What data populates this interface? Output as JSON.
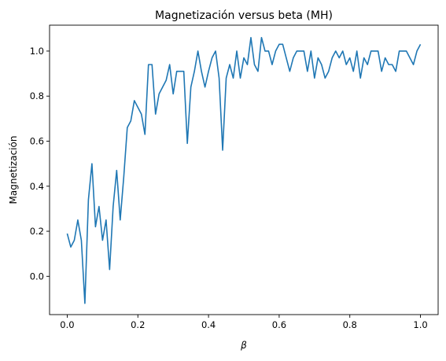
{
  "chart_data": {
    "type": "line",
    "title": "Magnetización versus beta (MH)",
    "xlabel": "β",
    "ylabel": "Magnetización",
    "xlim": [
      -0.05,
      1.05
    ],
    "ylim": [
      -0.17,
      1.115
    ],
    "xticks": [
      0.0,
      0.2,
      0.4,
      0.6,
      0.8,
      1.0
    ],
    "xtick_labels": [
      "0.0",
      "0.2",
      "0.4",
      "0.6",
      "0.8",
      "1.0"
    ],
    "yticks": [
      0.0,
      0.2,
      0.4,
      0.6,
      0.8,
      1.0
    ],
    "ytick_labels": [
      "0.0",
      "0.2",
      "0.4",
      "0.6",
      "0.8",
      "1.0"
    ],
    "grid": false,
    "series": [
      {
        "color": "#1f77b4",
        "x": [
          0.0,
          0.01,
          0.02,
          0.03,
          0.04,
          0.05,
          0.06,
          0.07,
          0.08,
          0.09,
          0.1,
          0.11,
          0.12,
          0.13,
          0.14,
          0.15,
          0.16,
          0.17,
          0.18,
          0.19,
          0.2,
          0.21,
          0.22,
          0.23,
          0.24,
          0.25,
          0.26,
          0.27,
          0.28,
          0.29,
          0.3,
          0.31,
          0.32,
          0.33,
          0.34,
          0.35,
          0.36,
          0.37,
          0.38,
          0.39,
          0.4,
          0.41,
          0.42,
          0.43,
          0.44,
          0.45,
          0.46,
          0.47,
          0.48,
          0.49,
          0.5,
          0.51,
          0.52,
          0.53,
          0.54,
          0.55,
          0.56,
          0.57,
          0.58,
          0.59,
          0.6,
          0.61,
          0.62,
          0.63,
          0.64,
          0.65,
          0.66,
          0.67,
          0.68,
          0.69,
          0.7,
          0.71,
          0.72,
          0.73,
          0.74,
          0.75,
          0.76,
          0.77,
          0.78,
          0.79,
          0.8,
          0.81,
          0.82,
          0.83,
          0.84,
          0.85,
          0.86,
          0.87,
          0.88,
          0.89,
          0.9,
          0.91,
          0.92,
          0.93,
          0.94,
          0.95,
          0.96,
          0.97,
          0.98,
          0.99,
          1.0
        ],
        "y": [
          0.19,
          0.13,
          0.16,
          0.25,
          0.16,
          -0.12,
          0.34,
          0.5,
          0.22,
          0.31,
          0.16,
          0.25,
          0.03,
          0.31,
          0.47,
          0.25,
          0.44,
          0.66,
          0.69,
          0.78,
          0.75,
          0.72,
          0.63,
          0.94,
          0.94,
          0.72,
          0.81,
          0.84,
          0.87,
          0.94,
          0.81,
          0.91,
          0.91,
          0.91,
          0.59,
          0.84,
          0.91,
          1.0,
          0.91,
          0.84,
          0.91,
          0.97,
          1.0,
          0.88,
          0.56,
          0.88,
          0.94,
          0.88,
          1.0,
          0.88,
          0.97,
          0.94,
          1.06,
          0.94,
          0.91,
          1.06,
          1.0,
          1.0,
          0.94,
          1.0,
          1.03,
          1.03,
          0.97,
          0.91,
          0.97,
          1.0,
          1.0,
          1.0,
          0.91,
          1.0,
          0.88,
          0.97,
          0.94,
          0.88,
          0.91,
          0.97,
          1.0,
          0.97,
          1.0,
          0.94,
          0.97,
          0.91,
          1.0,
          0.88,
          0.97,
          0.94,
          1.0,
          1.0,
          1.0,
          0.91,
          0.97,
          0.94,
          0.94,
          0.91,
          1.0,
          1.0,
          1.0,
          0.97,
          0.94,
          1.0,
          1.03
        ]
      }
    ]
  }
}
